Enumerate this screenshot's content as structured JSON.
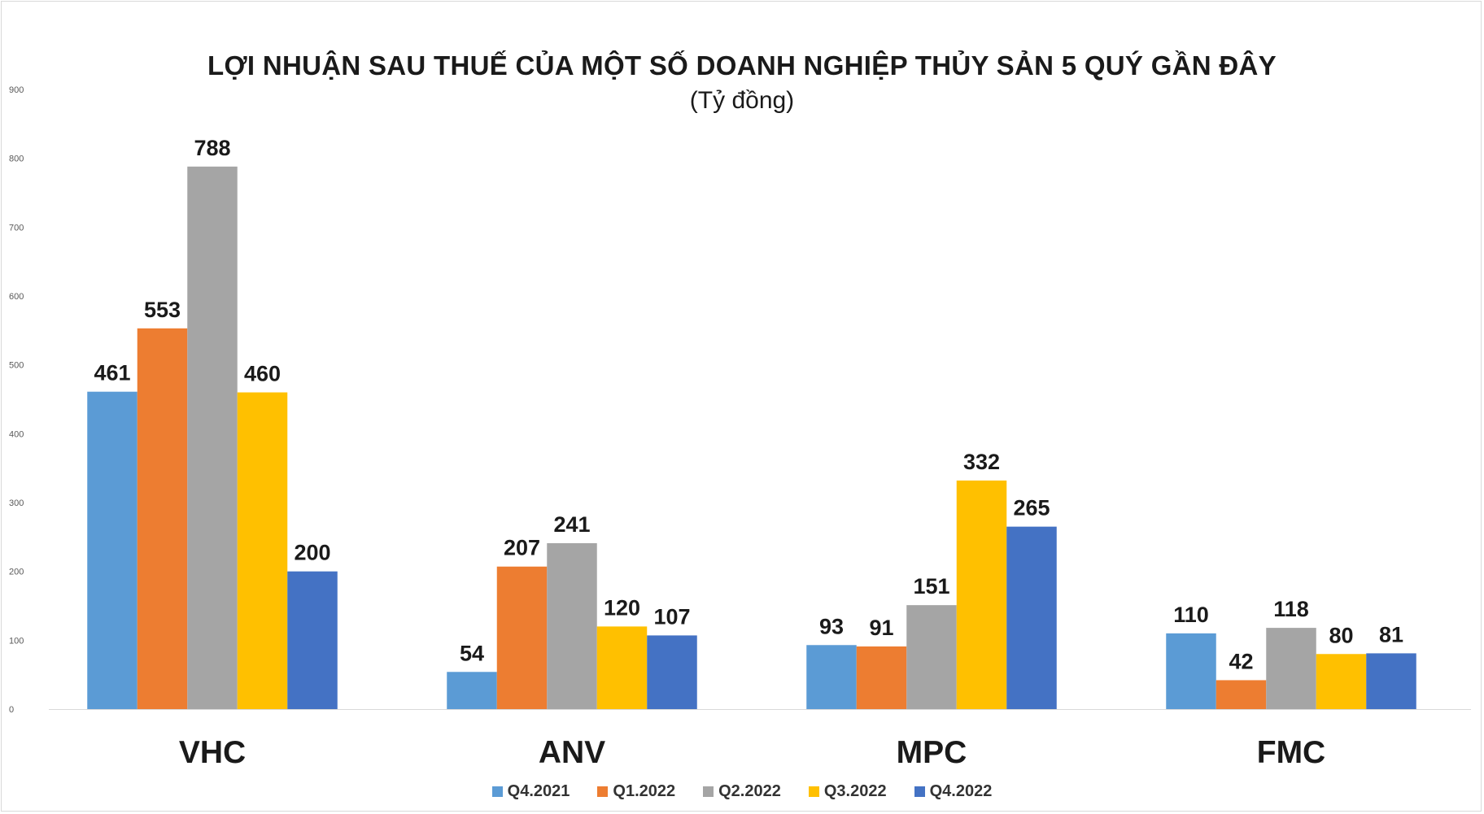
{
  "chart_data": {
    "type": "bar",
    "title": "LỢI NHUẬN SAU THUẾ CỦA MỘT SỐ DOANH NGHIỆP THỦY SẢN 5 QUÝ GẦN ĐÂY",
    "subtitle": "(Tỷ đồng)",
    "xlabel": "",
    "ylabel": "",
    "ylim": [
      0,
      900
    ],
    "yticks": [
      0,
      100,
      200,
      300,
      400,
      500,
      600,
      700,
      800,
      900
    ],
    "grid": false,
    "legend_position": "bottom",
    "categories": [
      "VHC",
      "ANV",
      "MPC",
      "FMC"
    ],
    "series": [
      {
        "name": "Q4.2021",
        "color": "#5b9bd5",
        "values": [
          461,
          54,
          93,
          110
        ]
      },
      {
        "name": "Q1.2022",
        "color": "#ed7d31",
        "values": [
          553,
          207,
          91,
          42
        ]
      },
      {
        "name": "Q2.2022",
        "color": "#a5a5a5",
        "values": [
          788,
          241,
          151,
          118
        ]
      },
      {
        "name": "Q3.2022",
        "color": "#ffc000",
        "values": [
          460,
          120,
          332,
          80
        ]
      },
      {
        "name": "Q4.2022",
        "color": "#4472c4",
        "values": [
          200,
          107,
          265,
          81
        ]
      }
    ]
  }
}
